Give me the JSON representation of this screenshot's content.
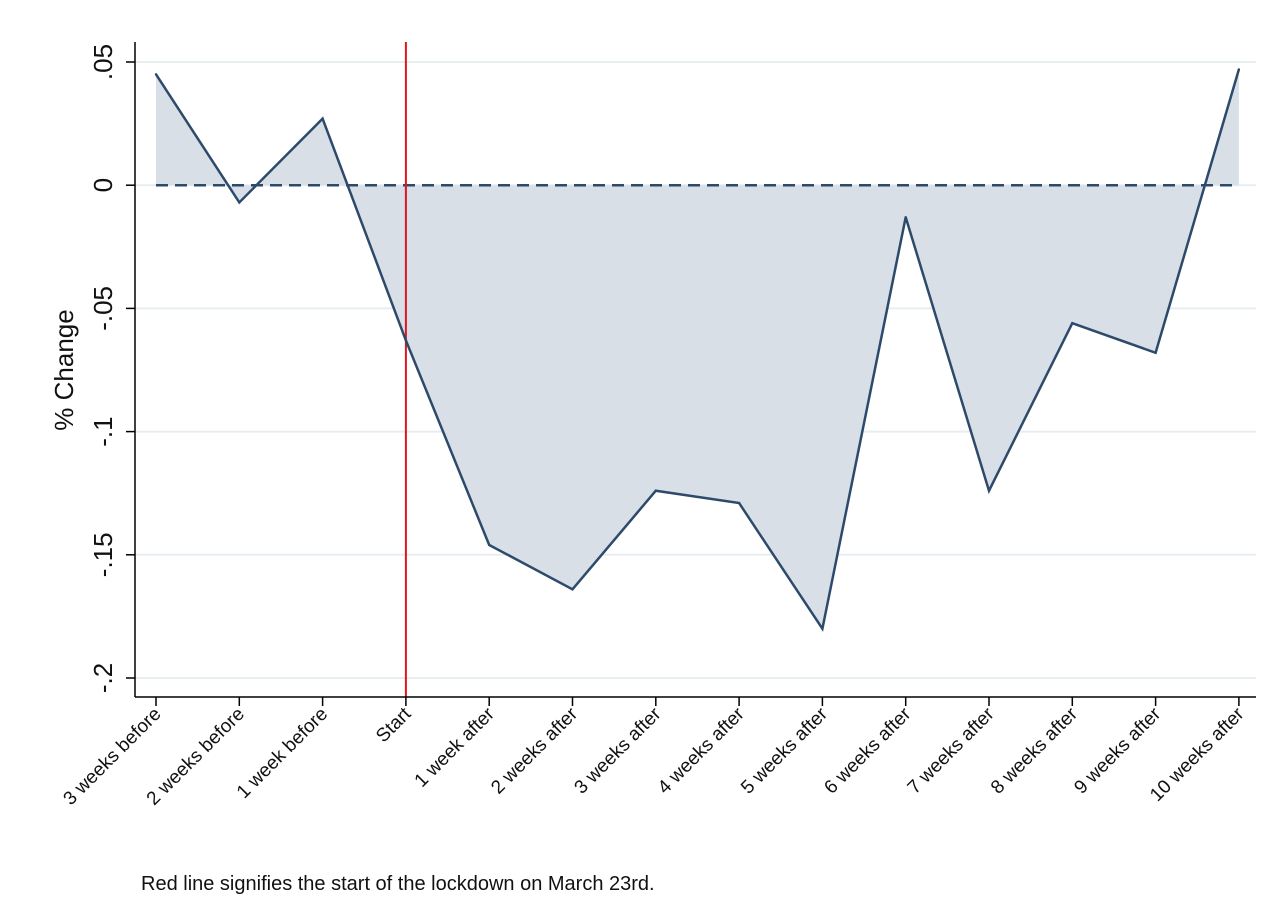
{
  "chart_data": {
    "type": "area",
    "title": "",
    "xlabel": "",
    "ylabel": "% Change",
    "ylim": [
      -0.2,
      0.05
    ],
    "y_ticks": [
      0.05,
      0,
      -0.05,
      -0.1,
      -0.15,
      -0.2
    ],
    "y_tick_labels": [
      ".05",
      "0",
      "-.05",
      "-.1",
      "-.15",
      "-.2"
    ],
    "categories": [
      "3 weeks before",
      "2 weeks before",
      "1 week before",
      "Start",
      "1 week after",
      "2 weeks after",
      "3 weeks after",
      "4 weeks after",
      "5 weeks after",
      "6 weeks after",
      "7 weeks after",
      "8 weeks after",
      "9 weeks after",
      "10 weeks after"
    ],
    "series": [
      {
        "values": [
          0.045,
          -0.007,
          0.027,
          -0.063,
          -0.146,
          -0.164,
          -0.124,
          -0.129,
          -0.18,
          -0.013,
          -0.124,
          -0.056,
          -0.068,
          0.047
        ]
      }
    ],
    "baseline": 0,
    "reference_line": {
      "category": "Start"
    },
    "grid": true,
    "colors": {
      "line": "#2e4a6b",
      "fill": "#d8dfe7",
      "baseline": "#2e4a6b",
      "reference": "#e0161f",
      "grid": "#e6eef2"
    }
  },
  "note": "Red line signifies the start of the lockdown on March 23rd."
}
